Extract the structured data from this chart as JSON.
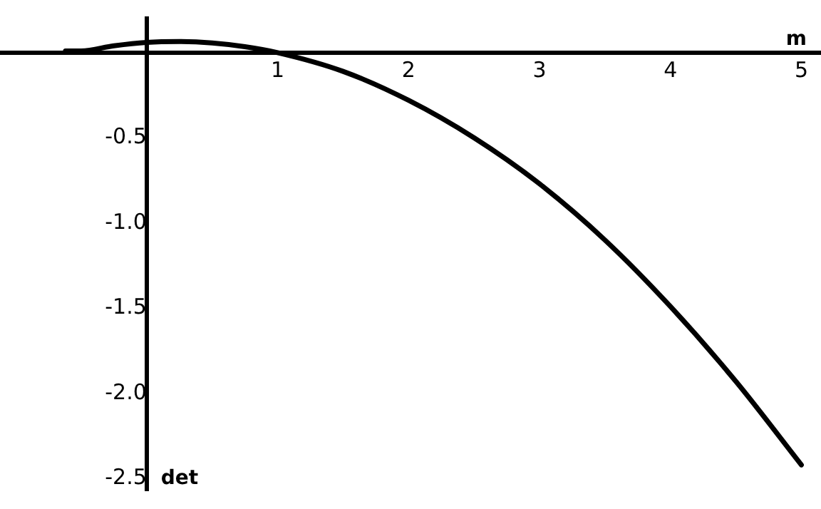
{
  "chart_data": {
    "type": "line",
    "xlabel": "m",
    "ylabel": "det",
    "x": [
      -0.62,
      -0.5,
      -0.25,
      0,
      0.25,
      0.5,
      0.75,
      1,
      1.5,
      2,
      2.5,
      3,
      3.5,
      4,
      4.5,
      5
    ],
    "series": [
      {
        "color": "#000000",
        "values": [
          0.01,
          0.01,
          0.04,
          0.06,
          0.065,
          0.057,
          0.035,
          0,
          -0.11,
          -0.28,
          -0.5,
          -0.77,
          -1.1,
          -1.49,
          -1.93,
          -2.42
        ]
      }
    ],
    "xlim": [
      -1.12,
      5.15
    ],
    "ylim": [
      -2.57,
      0.2
    ],
    "xticks": [
      1,
      2,
      3,
      4,
      5
    ],
    "yticks": [
      -0.5,
      {
        "value": -1,
        "label": "-1.0"
      },
      -1.5,
      {
        "value": -2,
        "label": "-2.0"
      },
      -2.5
    ],
    "grid": false,
    "legend": false,
    "marker": "none",
    "line_style": "solid"
  }
}
